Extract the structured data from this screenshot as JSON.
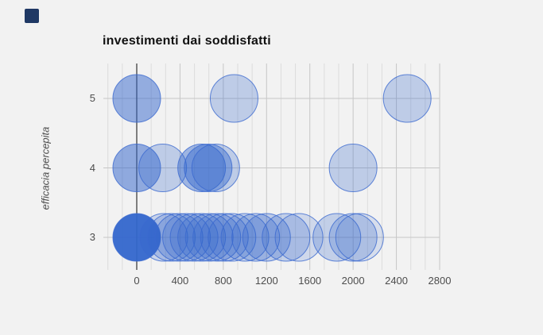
{
  "page": {
    "background": "#f2f2f2"
  },
  "corner_swatch": {
    "color": "#1f3864"
  },
  "chart_data": {
    "type": "bubble",
    "title": "investimenti dai soddisfatti",
    "xlabel": "",
    "ylabel": "efficacia percepita",
    "x_ticks": [
      0,
      400,
      800,
      1200,
      1600,
      2000,
      2400,
      2800
    ],
    "y_ticks": [
      3,
      4,
      5
    ],
    "xlim": [
      -310,
      2800
    ],
    "ylim": [
      2.5,
      5.5
    ],
    "grid": true,
    "legend": "none",
    "minor_gridline_step": 133.333,
    "bubble_color": "#3366cc",
    "bubble_stroke": "#3b69cf",
    "gridline_major_color": "#c6c6c6",
    "gridline_minor_color": "#dcdcdc",
    "zero_axis_color": "#333333",
    "points": [
      {
        "x": 0,
        "y": 5,
        "o": 0.5
      },
      {
        "x": 900,
        "y": 5,
        "o": 0.27
      },
      {
        "x": 2500,
        "y": 5,
        "o": 0.27
      },
      {
        "x": 0,
        "y": 4,
        "o": 0.52
      },
      {
        "x": 240,
        "y": 4,
        "o": 0.27
      },
      {
        "x": 600,
        "y": 4,
        "o": 0.44
      },
      {
        "x": 660,
        "y": 4,
        "o": 0.44
      },
      {
        "x": 730,
        "y": 4,
        "o": 0.27
      },
      {
        "x": 2000,
        "y": 4,
        "o": 0.27
      },
      {
        "x": 0,
        "y": 3,
        "o": 0.95
      },
      {
        "x": 250,
        "y": 3,
        "o": 0.22
      },
      {
        "x": 320,
        "y": 3,
        "o": 0.22
      },
      {
        "x": 390,
        "y": 3,
        "o": 0.25
      },
      {
        "x": 460,
        "y": 3,
        "o": 0.25
      },
      {
        "x": 530,
        "y": 3,
        "o": 0.25
      },
      {
        "x": 600,
        "y": 3,
        "o": 0.25
      },
      {
        "x": 670,
        "y": 3,
        "o": 0.25
      },
      {
        "x": 740,
        "y": 3,
        "o": 0.25
      },
      {
        "x": 810,
        "y": 3,
        "o": 0.22
      },
      {
        "x": 880,
        "y": 3,
        "o": 0.22
      },
      {
        "x": 1000,
        "y": 3,
        "o": 0.25
      },
      {
        "x": 1100,
        "y": 3,
        "o": 0.25
      },
      {
        "x": 1200,
        "y": 3,
        "o": 0.28
      },
      {
        "x": 1380,
        "y": 3,
        "o": 0.25
      },
      {
        "x": 1500,
        "y": 3,
        "o": 0.18
      },
      {
        "x": 1850,
        "y": 3,
        "o": 0.25
      },
      {
        "x": 2000,
        "y": 3,
        "o": 0.25
      },
      {
        "x": 2060,
        "y": 3,
        "o": 0.15
      }
    ]
  }
}
